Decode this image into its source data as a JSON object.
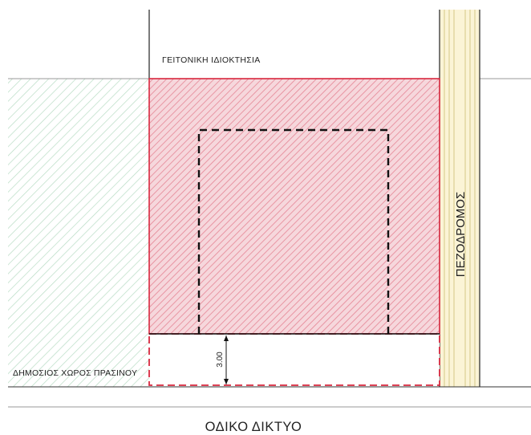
{
  "labels": {
    "neighbor_property": "ΓΕΙΤΟΝΙΚΗ ΙΔΙΟΚΤΗΣΙΑ",
    "public_green_space": "ΔΗΜΟΣΙΟΣ ΧΩΡΟΣ ΠΡΑΣΙΝΟΥ",
    "sidewalk": "ΠΕΖΟΔΡΟΜΟΣ",
    "road_network": "ΟΔΙΚΟ ΔΙΚΤΥΟ",
    "setback_dimension": "3.00"
  },
  "colors": {
    "plot_fill": "#f2c4cc",
    "plot_hatch": "#e58595",
    "plot_border": "#d8283f",
    "green_hatch": "#b8dcc4",
    "sidewalk_fill": "#fbf4d6",
    "sidewalk_lines": "#d6c987",
    "building_outline": "#111111"
  }
}
